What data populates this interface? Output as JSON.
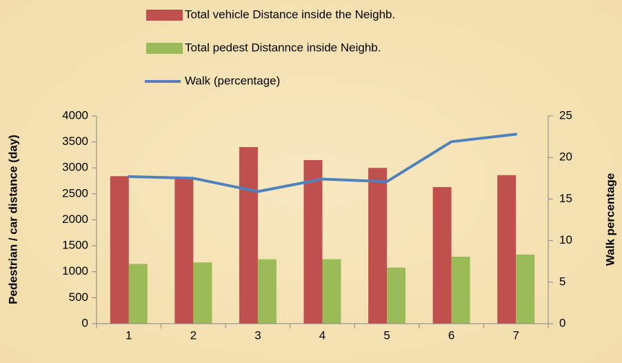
{
  "chart_data": {
    "type": "bar",
    "categories": [
      "1",
      "2",
      "3",
      "4",
      "5",
      "6",
      "7"
    ],
    "series": [
      {
        "name": "Total vehicle Distance inside the Neighb.",
        "color": "#c0504d",
        "values": [
          2840,
          2800,
          3400,
          3150,
          3000,
          2630,
          2860
        ]
      },
      {
        "name": "Total pedest Distannce inside Neighb.",
        "color": "#9bbb59",
        "values": [
          1150,
          1180,
          1240,
          1240,
          1080,
          1290,
          1330
        ]
      },
      {
        "name": "Walk (percentage)",
        "color": "#4f81bd",
        "type": "line",
        "axis": "y2",
        "values": [
          17.7,
          17.5,
          15.9,
          17.4,
          17.1,
          21.9,
          22.8
        ]
      }
    ],
    "y_label": "Pedestrian / car distance (day)",
    "y2_label": "Walk percentage",
    "ylim": [
      0,
      4000
    ],
    "yticks": [
      0,
      500,
      1000,
      1500,
      2000,
      2500,
      3000,
      3500,
      4000
    ],
    "y2lim": [
      0,
      25
    ],
    "y2ticks": [
      0,
      5,
      10,
      15,
      20,
      25
    ],
    "grid": false
  }
}
